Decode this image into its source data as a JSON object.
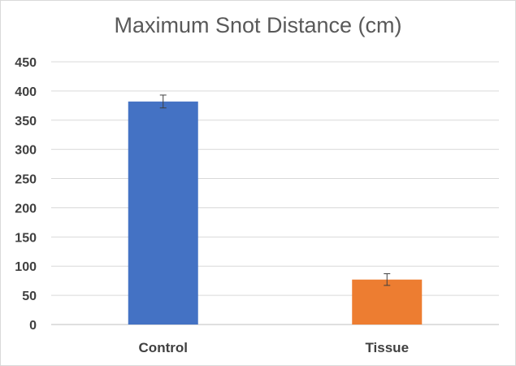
{
  "chart_data": {
    "type": "bar",
    "title": "Maximum Snot Distance (cm)",
    "categories": [
      "Control",
      "Tissue"
    ],
    "values": [
      382,
      77
    ],
    "error": [
      11,
      10
    ],
    "colors": [
      "#4472C4",
      "#ED7D31"
    ],
    "ylim": [
      0,
      450
    ],
    "yticks": [
      0,
      50,
      100,
      150,
      200,
      250,
      300,
      350,
      400,
      450
    ],
    "xlabel": "",
    "ylabel": "",
    "grid": true,
    "legend": "none"
  }
}
